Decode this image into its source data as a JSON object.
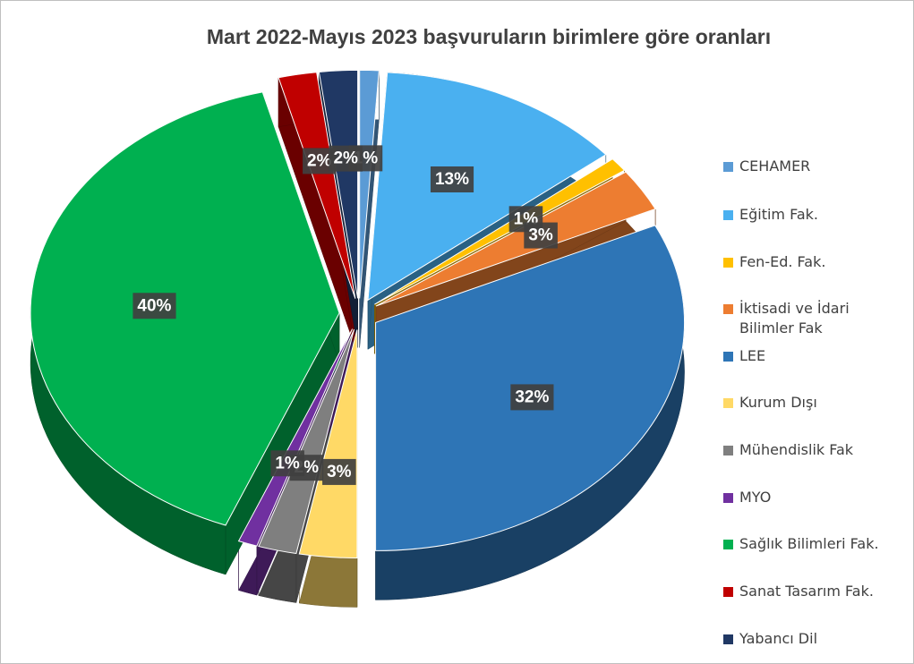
{
  "chart_data": {
    "type": "pie",
    "title": "Mart 2022-Mayıs 2023 başvuruların birimlere göre oranları",
    "categories": [
      "CEHAMER",
      "Eğitim Fak.",
      "Fen-Ed. Fak.",
      "İktisadi ve İdari Bilimler Fak",
      "LEE",
      "Kurum Dışı",
      "Mühendislik Fak",
      "MYO",
      "Sağlık Bilimleri Fak.",
      "Sanat Tasarım Fak.",
      "Yabancı Dil"
    ],
    "values": [
      1,
      13,
      1,
      3,
      32,
      3,
      2,
      1,
      40,
      2,
      2
    ],
    "value_labels": [
      "1%",
      "13%",
      "1%",
      "3%",
      "32%",
      "3%",
      "2%",
      "1%",
      "40%",
      "2%",
      "2%"
    ],
    "colors": [
      "#5b9bd5",
      "#4ab0f0",
      "#ffc000",
      "#ed7d31",
      "#2e75b6",
      "#ffd966",
      "#7f7f7f",
      "#7030a0",
      "#00b050",
      "#c00000",
      "#203864"
    ],
    "legend": "right"
  }
}
